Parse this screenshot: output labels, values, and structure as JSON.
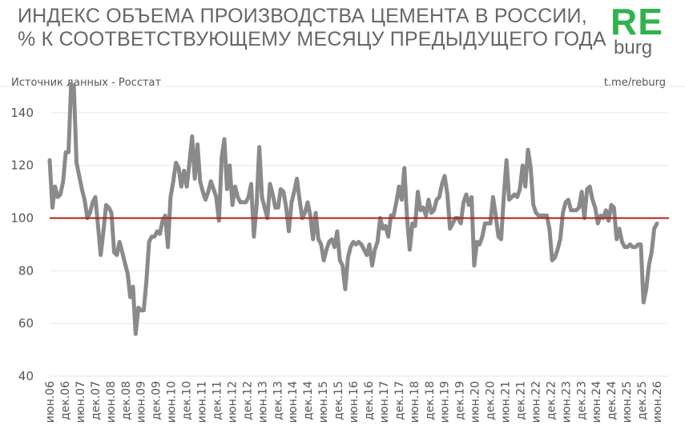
{
  "header": {
    "title_line1": "ИНДЕКС ОБЪЕМА ПРОИЗВОДСТВА ЦЕМЕНТА В РОССИИ,",
    "title_line2": "% К СООТВЕТСТВУЮЩЕМУ МЕСЯЦУ ПРЕДЫДУЩЕГО ГОДА",
    "source": "Источник данных  - Росстат",
    "site": "t.me/reburg",
    "logo_top": "RE",
    "logo_bottom": "burg"
  },
  "colors": {
    "logo_green": "#2fb34a",
    "series_line": "#8a8a8a",
    "reference_line": "#b01c1c",
    "gridline": "#e6e6e6"
  },
  "chart_data": {
    "type": "line",
    "title": "ИНДЕКС ОБЪЕМА ПРОИЗВОДСТВА ЦЕМЕНТА В РОССИИ, % К СООТВЕТСТВУЮЩЕМУ МЕСЯЦУ ПРЕДЫДУЩЕГО ГОДА",
    "xlabel": "",
    "ylabel": "",
    "ylim": [
      40,
      150
    ],
    "yticks": [
      40,
      60,
      80,
      100,
      120,
      140
    ],
    "grid": "horizontal",
    "x_start": "июн.06",
    "x_end": "июн.26",
    "x_ticks": [
      "июн.06",
      "дек.06",
      "июн.07",
      "дек.07",
      "июн.08",
      "дек.08",
      "июн.09",
      "дек.09",
      "июн.10",
      "дек.10",
      "июн.11",
      "дек.11",
      "июн.12",
      "дек.12",
      "июн.13",
      "дек.13",
      "июн.14",
      "дек.14",
      "июн.15",
      "дек.15",
      "июн.16",
      "дек.16",
      "июн.17",
      "дек.17",
      "июн.18",
      "дек.18",
      "июн.19",
      "дек.19",
      "июн.20",
      "дек.20",
      "июн.21",
      "дек.21",
      "июн.22",
      "дек.22",
      "июн.23",
      "дек.23",
      "июн.24",
      "дек.24",
      "июн.25",
      "дек.25",
      "июн.26"
    ],
    "reference_line": 100,
    "series": [
      {
        "values": [
          122,
          104,
          112,
          108,
          109,
          114,
          125,
          125,
          151,
          150,
          121,
          116,
          111,
          107,
          100,
          102,
          106,
          108,
          97,
          86,
          95,
          105,
          104,
          102,
          87,
          86,
          91,
          87,
          83,
          79,
          70,
          74,
          56,
          66,
          65,
          65,
          76,
          91,
          93,
          93,
          95,
          94,
          99,
          101,
          89,
          108,
          114,
          121,
          119,
          112,
          118,
          112,
          121,
          131,
          115,
          128,
          114,
          110,
          107,
          110,
          114,
          111,
          108,
          99,
          123,
          130,
          111,
          120,
          105,
          112,
          108,
          106,
          106,
          106,
          108,
          113,
          93,
          105,
          127,
          108,
          104,
          100,
          113,
          109,
          104,
          104,
          111,
          110,
          104,
          95,
          106,
          110,
          115,
          107,
          100,
          102,
          106,
          101,
          92,
          102,
          92,
          90,
          84,
          88,
          91,
          92,
          89,
          95,
          84,
          82,
          73,
          85,
          89,
          91,
          90,
          91,
          90,
          88,
          86,
          90,
          82,
          88,
          91,
          100,
          96,
          97,
          93,
          101,
          101,
          106,
          112,
          107,
          119,
          100,
          88,
          98,
          97,
          110,
          103,
          104,
          101,
          107,
          102,
          103,
          107,
          108,
          113,
          116,
          109,
          96,
          98,
          100,
          100,
          98,
          106,
          109,
          105,
          108,
          82,
          91,
          90,
          93,
          98,
          98,
          98,
          108,
          101,
          93,
          92,
          108,
          122,
          107,
          108,
          109,
          108,
          111,
          120,
          112,
          126,
          119,
          105,
          102,
          101,
          101,
          101,
          101,
          96,
          84,
          85,
          88,
          92,
          102,
          106,
          107,
          103,
          103,
          103,
          104,
          110,
          100,
          111,
          112,
          107,
          104,
          98,
          101,
          100,
          103,
          99,
          105,
          104,
          92,
          96,
          91,
          89,
          89,
          90,
          89,
          89,
          90,
          90,
          68,
          73,
          82,
          87,
          96,
          98
        ]
      }
    ]
  }
}
